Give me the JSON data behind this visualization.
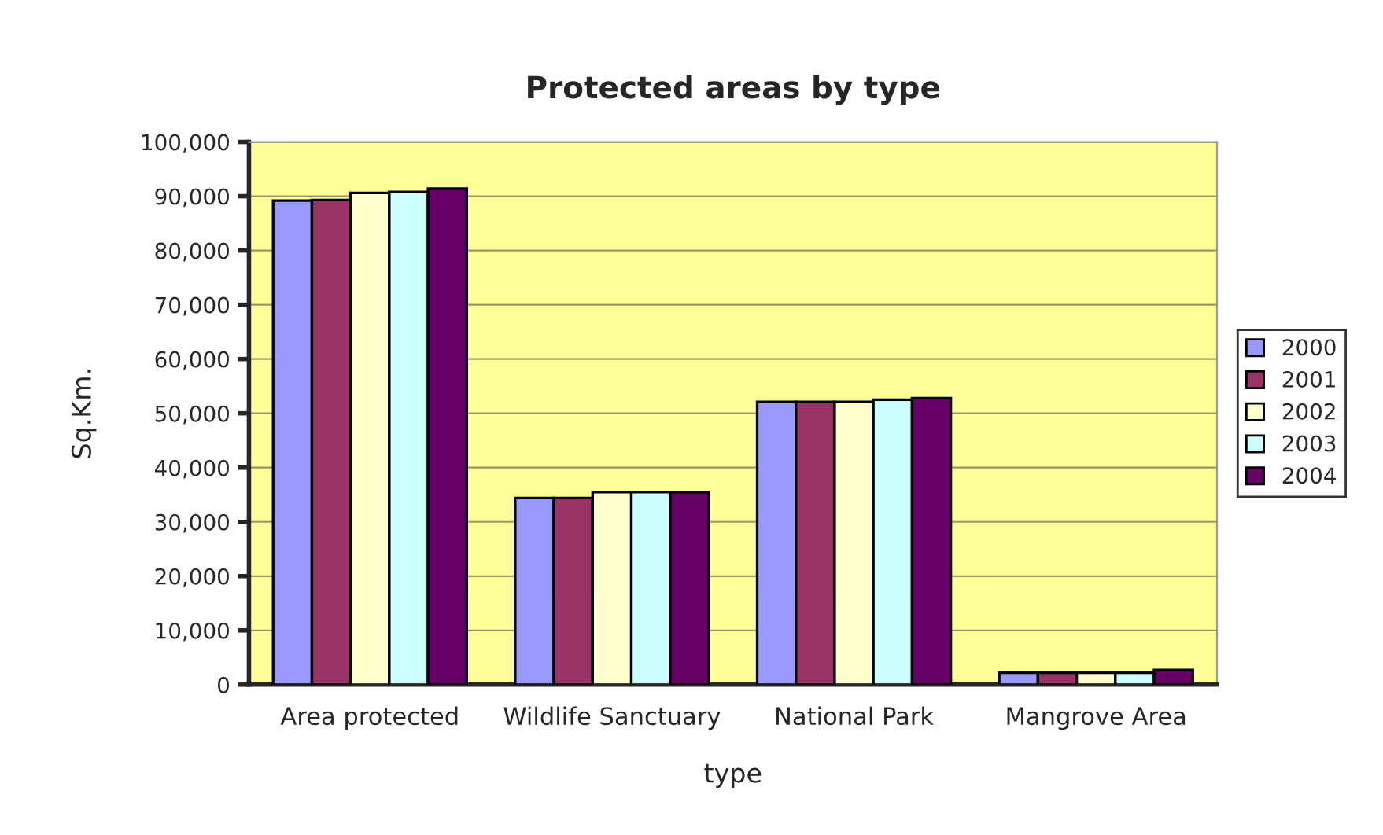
{
  "chart_data": {
    "type": "bar",
    "title": "Protected areas by type",
    "xlabel": "type",
    "ylabel": "Sq.Km.",
    "categories": [
      "Area protected",
      "Wildlife Sanctuary",
      "National Park",
      "Mangrove Area"
    ],
    "series": [
      {
        "name": "2000",
        "color": "#9999ff",
        "values": [
          89200,
          34400,
          52100,
          2200
        ]
      },
      {
        "name": "2001",
        "color": "#993366",
        "values": [
          89300,
          34400,
          52100,
          2200
        ]
      },
      {
        "name": "2002",
        "color": "#ffffcc",
        "values": [
          90600,
          35500,
          52100,
          2200
        ]
      },
      {
        "name": "2003",
        "color": "#ccffff",
        "values": [
          90800,
          35500,
          52500,
          2200
        ]
      },
      {
        "name": "2004",
        "color": "#660066",
        "values": [
          91400,
          35500,
          52800,
          2700
        ]
      }
    ],
    "ylim": [
      0,
      100000
    ],
    "yticks": [
      {
        "value": 0,
        "label": "0"
      },
      {
        "value": 10000,
        "label": "10,000"
      },
      {
        "value": 20000,
        "label": "20,000"
      },
      {
        "value": 30000,
        "label": "30,000"
      },
      {
        "value": 40000,
        "label": "40,000"
      },
      {
        "value": 50000,
        "label": "50,000"
      },
      {
        "value": 60000,
        "label": "60,000"
      },
      {
        "value": 70000,
        "label": "70,000"
      },
      {
        "value": 80000,
        "label": "80,000"
      },
      {
        "value": 90000,
        "label": "90,000"
      },
      {
        "value": 100000,
        "label": "100,000"
      }
    ],
    "grid": "y",
    "legend": "right"
  }
}
